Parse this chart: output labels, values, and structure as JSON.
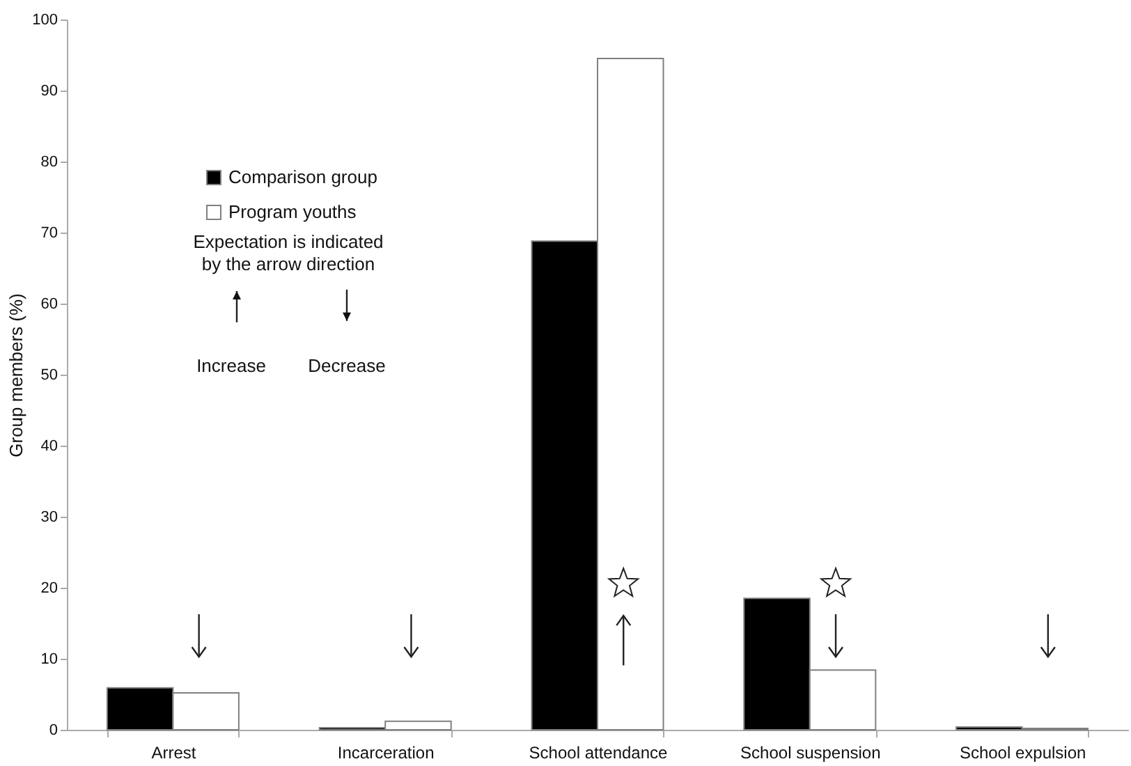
{
  "chart_data": {
    "type": "bar",
    "ylabel": "Group members (%)",
    "categories": [
      "Arrest",
      "Incarceration",
      "School attendance",
      "School suspension",
      "School expulsion"
    ],
    "series": [
      {
        "name": "Comparison group",
        "color": "#000000",
        "values": [
          5.9,
          0.3,
          68.8,
          18.5,
          0.4
        ]
      },
      {
        "name": "Program youths",
        "color": "#ffffff",
        "values": [
          5.2,
          1.2,
          94.5,
          8.4,
          0.2
        ]
      }
    ],
    "ylim": [
      0,
      100
    ],
    "yticks": [
      0,
      10,
      20,
      30,
      40,
      50,
      60,
      70,
      80,
      90,
      100
    ],
    "grid": false,
    "legend": "top left",
    "annotations": [
      "Expectation is indicated by the arrow direction",
      "Increase",
      "Decrease"
    ]
  }
}
